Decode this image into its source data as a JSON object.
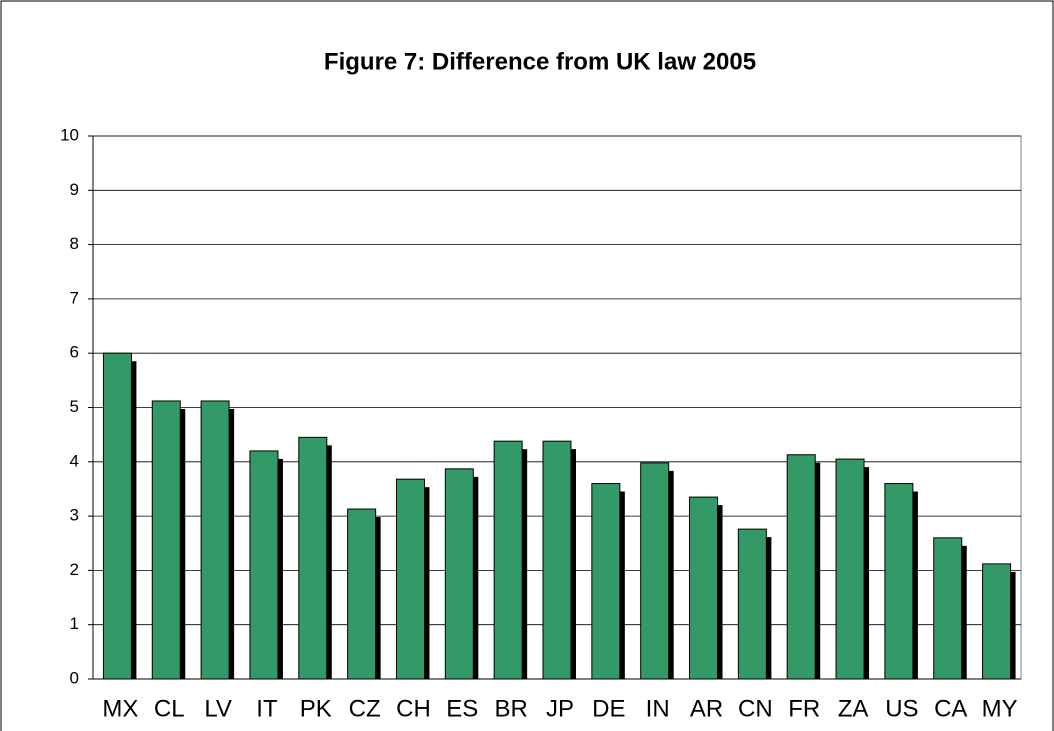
{
  "chart_data": {
    "type": "bar",
    "title": "Figure 7: Difference from UK law 2005",
    "categories": [
      "MX",
      "CL",
      "LV",
      "IT",
      "PK",
      "CZ",
      "CH",
      "ES",
      "BR",
      "JP",
      "DE",
      "IN",
      "AR",
      "CN",
      "FR",
      "ZA",
      "US",
      "CA",
      "MY"
    ],
    "values": [
      6.0,
      5.12,
      5.12,
      4.2,
      4.45,
      3.13,
      3.68,
      3.87,
      4.38,
      4.38,
      3.6,
      3.98,
      3.35,
      2.76,
      4.13,
      4.05,
      3.6,
      2.6,
      2.12
    ],
    "color": "#339966",
    "ylim": [
      0,
      10
    ],
    "yticks": [
      0,
      1,
      2,
      3,
      4,
      5,
      6,
      7,
      8,
      9,
      10
    ],
    "grid": true
  }
}
